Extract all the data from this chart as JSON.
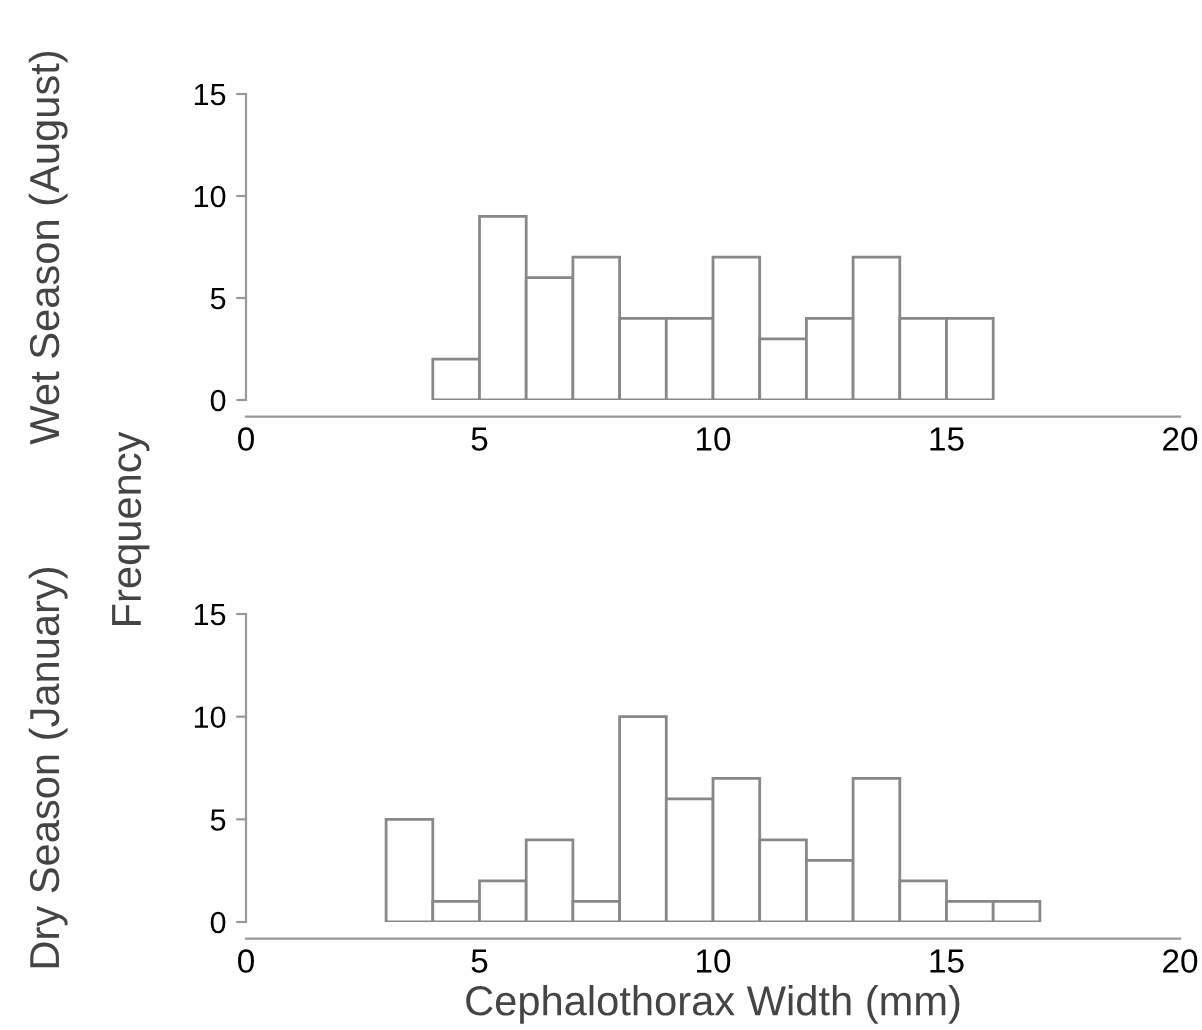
{
  "chart_data": [
    {
      "type": "histogram",
      "ylabel": "Wet Season (August)",
      "annotations": [
        "Frequency"
      ],
      "bins": [
        4,
        5,
        6,
        7,
        8,
        9,
        10,
        11,
        12,
        13,
        14,
        15,
        16
      ],
      "values": [
        2,
        9,
        6,
        7,
        4,
        4,
        7,
        3,
        4,
        7,
        4,
        4
      ],
      "color": "#ffffff",
      "xlim": [
        0,
        20
      ],
      "xticks": [
        0,
        5,
        10,
        15,
        20
      ],
      "ylim": [
        0,
        15
      ],
      "yticks": [
        0,
        5,
        10,
        15
      ],
      "grid": false
    },
    {
      "type": "histogram",
      "ylabel": "Dry Season (January)",
      "xlabel": "Cephalothorax Width (mm)",
      "bins": [
        3,
        4,
        5,
        6,
        7,
        8,
        9,
        10,
        11,
        12,
        13,
        14,
        15,
        16,
        17
      ],
      "values": [
        5,
        1,
        2,
        4,
        1,
        10,
        6,
        7,
        4,
        3,
        7,
        2,
        1,
        1
      ],
      "color": "#ffffff",
      "xlim": [
        0,
        20
      ],
      "xticks": [
        0,
        5,
        10,
        15,
        20
      ],
      "ylim": [
        0,
        15
      ],
      "yticks": [
        0,
        5,
        10,
        15
      ],
      "grid": false
    }
  ]
}
